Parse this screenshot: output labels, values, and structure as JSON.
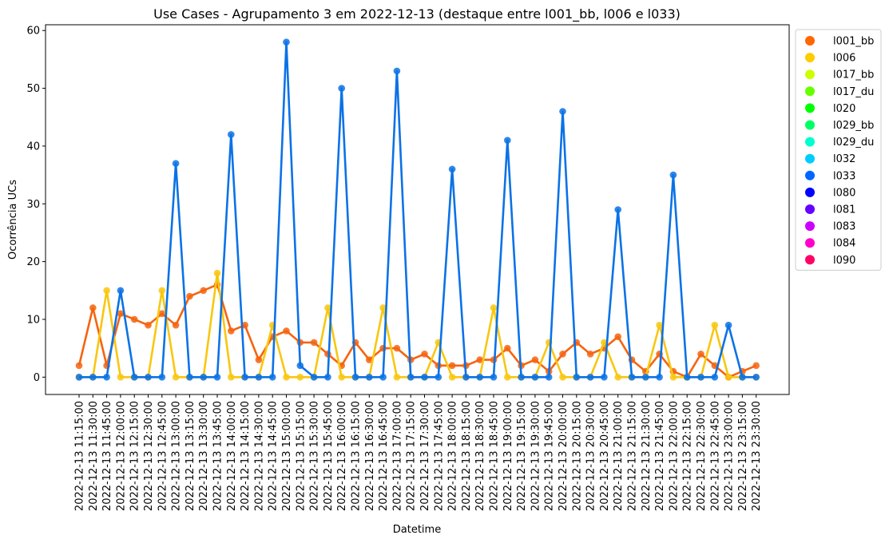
{
  "chart_data": {
    "type": "line",
    "title": "Use Cases - Agrupamento 3 em 2022-12-13 (destaque entre l001_bb, l006 e l033)",
    "xlabel": "Datetime",
    "ylabel": "Ocorrência UCs",
    "ylim": [
      -3,
      61
    ],
    "yticks": [
      0,
      10,
      20,
      30,
      40,
      50,
      60
    ],
    "grid": false,
    "legend_position": "outside-top-right",
    "categories": [
      "2022-12-13 11:15:00",
      "2022-12-13 11:30:00",
      "2022-12-13 11:45:00",
      "2022-12-13 12:00:00",
      "2022-12-13 12:15:00",
      "2022-12-13 12:30:00",
      "2022-12-13 12:45:00",
      "2022-12-13 13:00:00",
      "2022-12-13 13:15:00",
      "2022-12-13 13:30:00",
      "2022-12-13 13:45:00",
      "2022-12-13 14:00:00",
      "2022-12-13 14:15:00",
      "2022-12-13 14:30:00",
      "2022-12-13 14:45:00",
      "2022-12-13 15:00:00",
      "2022-12-13 15:15:00",
      "2022-12-13 15:30:00",
      "2022-12-13 15:45:00",
      "2022-12-13 16:00:00",
      "2022-12-13 16:15:00",
      "2022-12-13 16:30:00",
      "2022-12-13 16:45:00",
      "2022-12-13 17:00:00",
      "2022-12-13 17:15:00",
      "2022-12-13 17:30:00",
      "2022-12-13 17:45:00",
      "2022-12-13 18:00:00",
      "2022-12-13 18:15:00",
      "2022-12-13 18:30:00",
      "2022-12-13 18:45:00",
      "2022-12-13 19:00:00",
      "2022-12-13 19:15:00",
      "2022-12-13 19:30:00",
      "2022-12-13 19:45:00",
      "2022-12-13 20:00:00",
      "2022-12-13 20:15:00",
      "2022-12-13 20:30:00",
      "2022-12-13 20:45:00",
      "2022-12-13 21:00:00",
      "2022-12-13 21:15:00",
      "2022-12-13 21:30:00",
      "2022-12-13 21:45:00",
      "2022-12-13 22:00:00",
      "2022-12-13 22:15:00",
      "2022-12-13 22:30:00",
      "2022-12-13 22:45:00",
      "2022-12-13 23:00:00",
      "2022-12-13 23:15:00",
      "2022-12-13 23:30:00"
    ],
    "series": [
      {
        "name": "l001_bb",
        "color": "#f5640f",
        "values": [
          2,
          12,
          2,
          11,
          10,
          9,
          11,
          9,
          14,
          15,
          16,
          8,
          9,
          3,
          7,
          8,
          6,
          6,
          4,
          2,
          6,
          3,
          5,
          5,
          3,
          4,
          2,
          2,
          2,
          3,
          3,
          5,
          2,
          3,
          1,
          4,
          6,
          4,
          5,
          7,
          3,
          1,
          4,
          1,
          0,
          4,
          2,
          0,
          1,
          2
        ]
      },
      {
        "name": "l006",
        "color": "#f8c70f",
        "values": [
          0,
          0,
          15,
          0,
          0,
          0,
          15,
          0,
          0,
          0,
          18,
          0,
          0,
          0,
          9,
          0,
          0,
          0,
          12,
          0,
          0,
          0,
          12,
          0,
          0,
          0,
          6,
          0,
          0,
          0,
          12,
          0,
          0,
          0,
          6,
          0,
          0,
          0,
          6,
          0,
          0,
          0,
          9,
          0,
          0,
          0,
          9,
          0,
          0,
          0
        ]
      },
      {
        "name": "l033",
        "color": "#0b72e6",
        "values": [
          0,
          0,
          0,
          15,
          0,
          0,
          0,
          37,
          0,
          0,
          0,
          42,
          0,
          0,
          0,
          58,
          2,
          0,
          0,
          50,
          0,
          0,
          0,
          53,
          0,
          0,
          0,
          36,
          0,
          0,
          0,
          41,
          0,
          0,
          0,
          46,
          0,
          0,
          0,
          29,
          0,
          0,
          0,
          35,
          0,
          0,
          0,
          9,
          0,
          0
        ]
      }
    ],
    "legend": [
      {
        "name": "l001_bb",
        "color": "#ff6600"
      },
      {
        "name": "l006",
        "color": "#ffcc00"
      },
      {
        "name": "l017_bb",
        "color": "#ccff00"
      },
      {
        "name": "l017_du",
        "color": "#66ff00"
      },
      {
        "name": "l020",
        "color": "#00ff00"
      },
      {
        "name": "l029_bb",
        "color": "#00ff66"
      },
      {
        "name": "l029_du",
        "color": "#00ffcc"
      },
      {
        "name": "l032",
        "color": "#00ccff"
      },
      {
        "name": "l033",
        "color": "#0066ff"
      },
      {
        "name": "l080",
        "color": "#0000ff"
      },
      {
        "name": "l081",
        "color": "#6600ff"
      },
      {
        "name": "l083",
        "color": "#cc00ff"
      },
      {
        "name": "l084",
        "color": "#ff00cc"
      },
      {
        "name": "l090",
        "color": "#ff0066"
      }
    ]
  }
}
